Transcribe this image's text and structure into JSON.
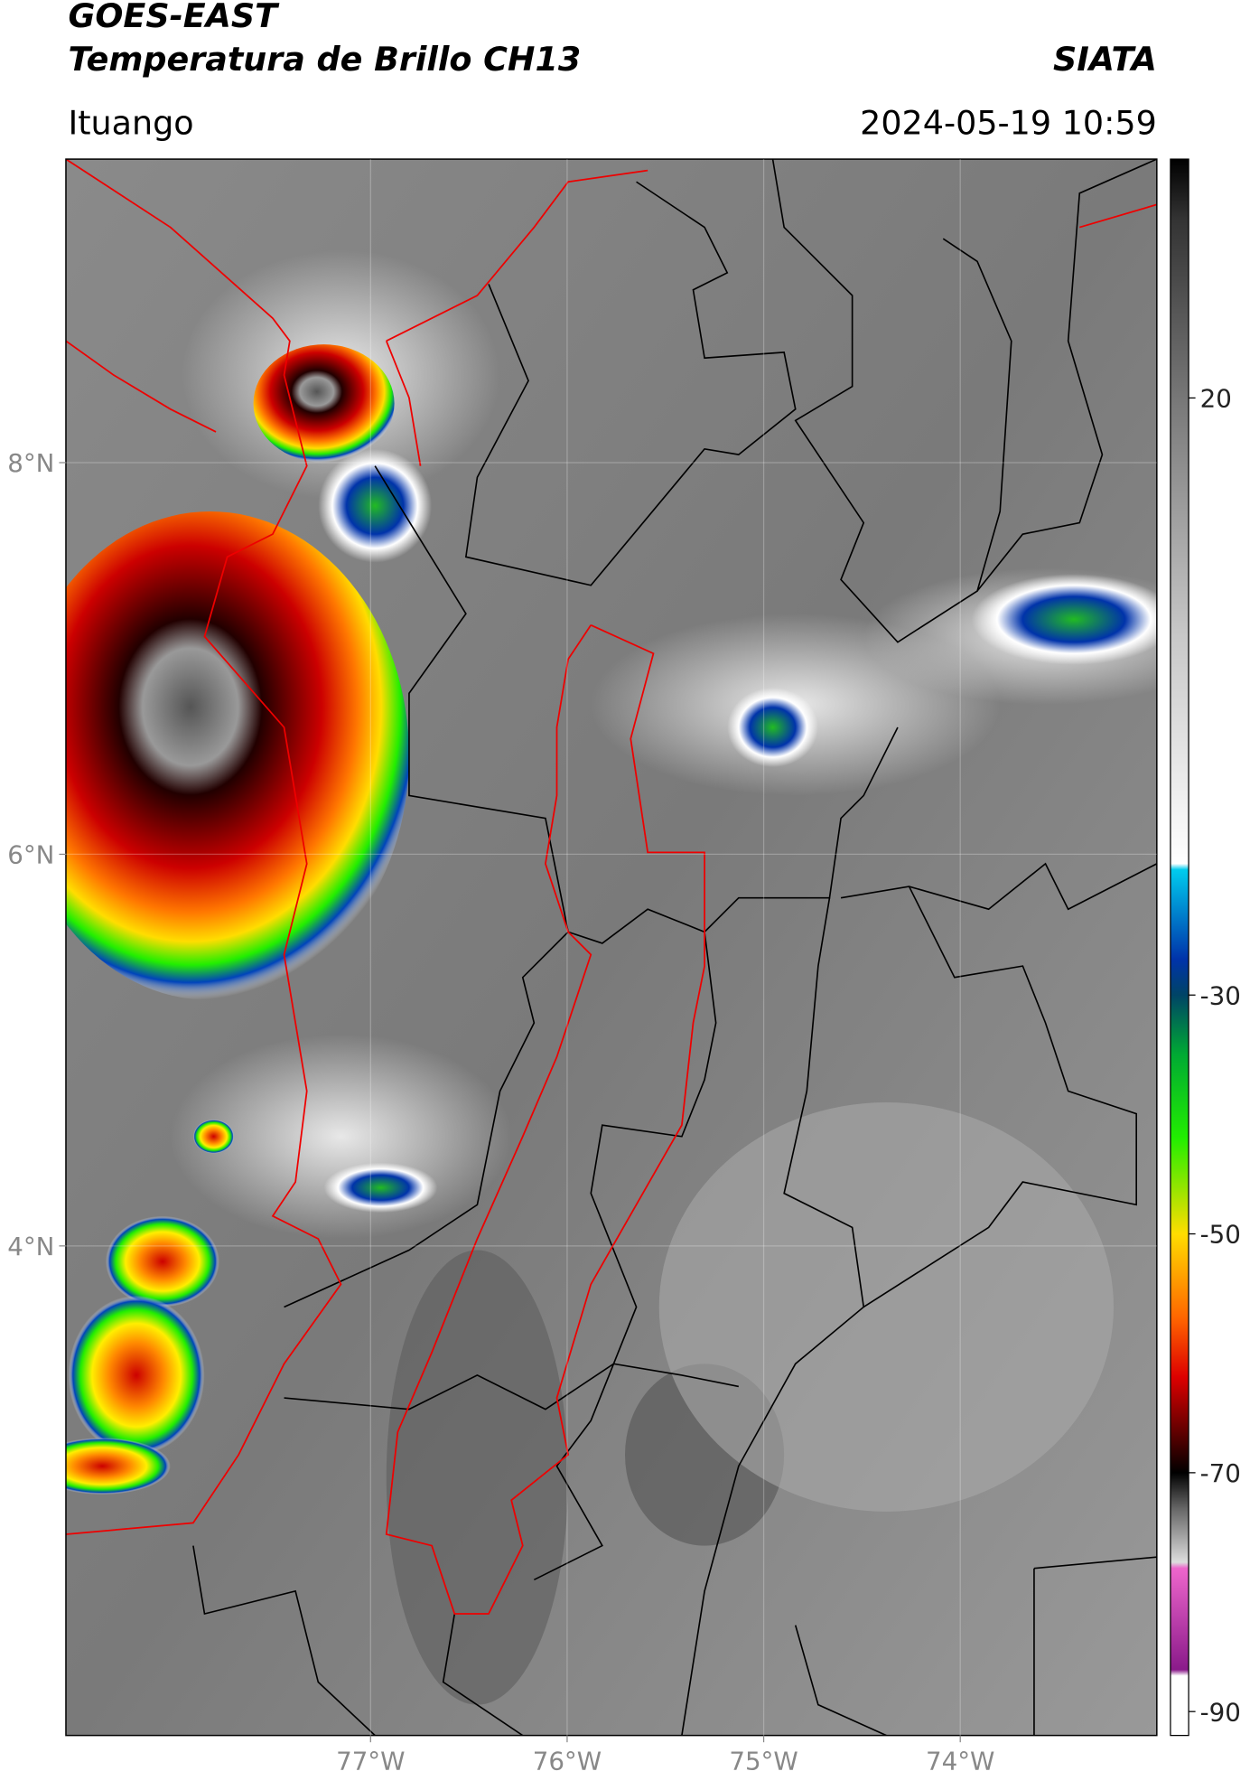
{
  "map": {
    "title_lines": [
      "GOES-EAST",
      "Temperatura de Brillo CH13"
    ],
    "source": "SIATA",
    "location": "Ituango",
    "datetime": "2024-05-19 10:59",
    "xlim": [
      -78.55,
      -73.0
    ],
    "ylim": [
      1.5,
      9.55
    ],
    "xticks": [
      {
        "value": -77,
        "label": "77°W"
      },
      {
        "value": -76,
        "label": "76°W"
      },
      {
        "value": -75,
        "label": "75°W"
      },
      {
        "value": -74,
        "label": "74°W"
      }
    ],
    "yticks": [
      {
        "value": 8,
        "label": "8°N"
      },
      {
        "value": 6,
        "label": "6°N"
      },
      {
        "value": 4,
        "label": "4°N"
      }
    ],
    "grid": true,
    "colorbar": {
      "lim": [
        -92,
        40
      ],
      "ticks": [
        20,
        -30,
        -50,
        -70,
        -90
      ],
      "colormap": [
        {
          "value": 40,
          "color": "#000000"
        },
        {
          "value": 35,
          "color": "#333333"
        },
        {
          "value": 20,
          "color": "#777777"
        },
        {
          "value": 0,
          "color": "#c8c8c8"
        },
        {
          "value": -19,
          "color": "#ffffff"
        },
        {
          "value": -19.5,
          "color": "#00ccee"
        },
        {
          "value": -27,
          "color": "#0033aa"
        },
        {
          "value": -30,
          "color": "#004466"
        },
        {
          "value": -35,
          "color": "#00aa33"
        },
        {
          "value": -42,
          "color": "#22ee00"
        },
        {
          "value": -50,
          "color": "#ffdd00"
        },
        {
          "value": -57,
          "color": "#ff6600"
        },
        {
          "value": -62,
          "color": "#dd0000"
        },
        {
          "value": -67,
          "color": "#550000"
        },
        {
          "value": -70,
          "color": "#000000"
        },
        {
          "value": -73,
          "color": "#666666"
        },
        {
          "value": -77.5,
          "color": "#dddddd"
        },
        {
          "value": -78,
          "color": "#ee66cc"
        },
        {
          "value": -86.5,
          "color": "#8a1a8a"
        },
        {
          "value": -87,
          "color": "#ffffff"
        },
        {
          "value": -92,
          "color": "#ffffff"
        }
      ]
    }
  }
}
